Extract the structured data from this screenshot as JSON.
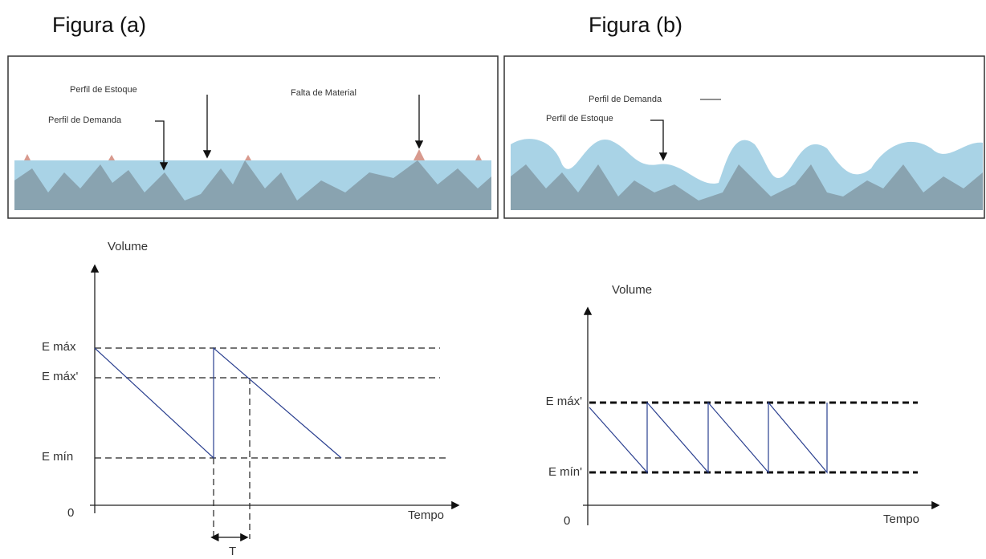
{
  "figures": [
    {
      "title": "Figura (a)",
      "illustration": {
        "labels": [
          "Perfil de Estoque",
          "Falta de Material",
          "Perfil de Demanda"
        ]
      },
      "graph": {
        "y_axis_label": "Volume",
        "x_axis_label": "Tempo",
        "origin": "0",
        "levels": [
          "E máx",
          "E máx'",
          "E mín"
        ],
        "interval": "T"
      }
    },
    {
      "title": "Figura (b)",
      "illustration": {
        "labels": [
          "Perfil de Demanda",
          "Perfil de Estoque"
        ]
      },
      "graph": {
        "y_axis_label": "Volume",
        "x_axis_label": "Tempo",
        "origin": "0",
        "levels": [
          "E máx'",
          "E mín'"
        ]
      }
    }
  ]
}
